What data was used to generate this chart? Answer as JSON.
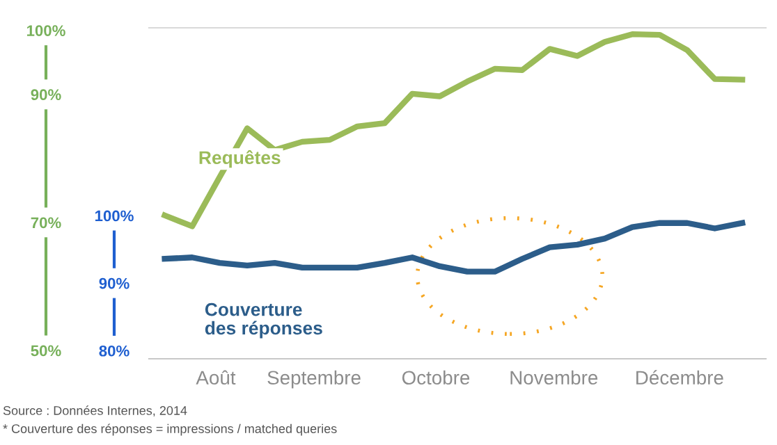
{
  "chart_data": {
    "type": "line",
    "x": [
      "2014-07-28",
      "2014-08-04",
      "2014-08-11",
      "2014-08-18",
      "2014-08-25",
      "2014-09-01",
      "2014-09-08",
      "2014-09-15",
      "2014-09-22",
      "2014-09-29",
      "2014-10-06",
      "2014-10-13",
      "2014-10-20",
      "2014-10-27",
      "2014-11-03",
      "2014-11-10",
      "2014-11-17",
      "2014-11-24",
      "2014-12-01",
      "2014-12-08",
      "2014-12-15",
      "2014-12-22"
    ],
    "series": [
      {
        "name": "Requêtes",
        "color": "#9bbb59",
        "values": [
          71.1,
          69.4,
          77.1,
          84.7,
          81.3,
          82.6,
          82.9,
          85.0,
          85.5,
          90.1,
          89.7,
          92.0,
          94.0,
          93.8,
          97.1,
          96.0,
          98.2,
          99.4,
          99.3,
          96.9,
          92.4,
          92.3
        ]
      },
      {
        "name": "Couverture\ndes réponses",
        "color": "#2c5d8a",
        "axis": "y2",
        "values": [
          93.6,
          93.8,
          93.0,
          92.6,
          93.0,
          92.3,
          92.3,
          92.3,
          93.0,
          93.8,
          92.5,
          91.7,
          91.7,
          93.6,
          95.3,
          95.7,
          96.6,
          98.3,
          98.9,
          98.9,
          98.1,
          98.9
        ]
      }
    ],
    "xlim": [
      "2014-07-24",
      "2014-12-28"
    ],
    "xticks": [
      {
        "value": "2014-08-10",
        "label": "Août"
      },
      {
        "value": "2014-09-04",
        "label": "Septembre"
      },
      {
        "value": "2014-10-05",
        "label": "Octobre"
      },
      {
        "value": "2014-11-04",
        "label": "Novembre"
      },
      {
        "value": "2014-12-06",
        "label": "Décembre"
      }
    ],
    "ylim": [
      48.7,
      100.4
    ],
    "yticks": [
      {
        "value": 50,
        "label": "50%"
      },
      {
        "value": 70,
        "label": "70%"
      },
      {
        "value": 90,
        "label": "90%"
      },
      {
        "value": 100,
        "label": "100%"
      }
    ],
    "y2lim": [
      78.8,
      127.8
    ],
    "y2ticks": [
      {
        "value": 80,
        "label": "80%"
      },
      {
        "value": 90,
        "label": "90%"
      },
      {
        "value": 100,
        "label": "100%"
      }
    ],
    "legend": false,
    "grid": false,
    "annotations": [
      "Source : Données Internes, 2014",
      "* Couverture des réponses = impressions / matched queries"
    ]
  }
}
